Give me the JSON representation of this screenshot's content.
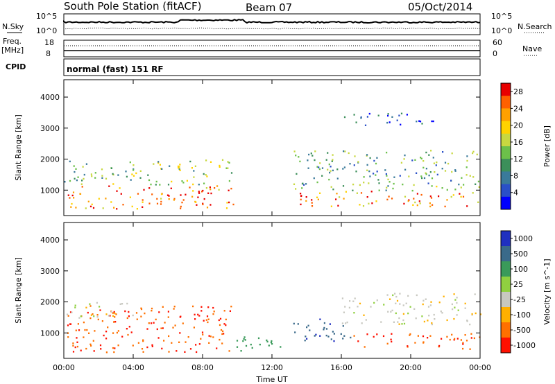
{
  "header": {
    "station": "South Pole Station (fitACF)",
    "beam": "Beam 07",
    "date": "05/Oct/2014"
  },
  "panels_top": {
    "nsky_label": "N.Sky",
    "nsky_ticks": [
      "10^5",
      "10^0"
    ],
    "nsearch_label": "N.Search",
    "nsearch_ticks": [
      "10^5",
      "10^0"
    ],
    "freq_label_1": "Freq.",
    "freq_label_2": "[MHz]",
    "freq_ticks": [
      "18",
      "8"
    ],
    "nave_label": "Nave",
    "nave_ticks": [
      "60",
      "0"
    ],
    "cpid_label": "CPID",
    "cpid_value": "normal (fast) 151 RF"
  },
  "chart_data": [
    {
      "type": "heatmap",
      "title": "",
      "xlabel": "Time UT",
      "ylabel": "Slant Range [km]",
      "x_ticks": [
        "00:00",
        "04:00",
        "08:00",
        "12:00",
        "16:00",
        "20:00",
        "00:00"
      ],
      "y_ticks": [
        "1000",
        "2000",
        "3000",
        "4000"
      ],
      "xlim_hours": [
        0,
        24
      ],
      "ylim_km": [
        180,
        4560
      ],
      "colorbar_label": "Power [dB]",
      "colorbar_ticks": [
        "28",
        "24",
        "20",
        "16",
        "12",
        "8",
        "4"
      ],
      "colorbar_range": [
        0,
        30
      ],
      "colorscale": [
        "#0000ff",
        "#2a50c8",
        "#3a7a9a",
        "#3c8f5a",
        "#6cc04a",
        "#c8d840",
        "#ffd200",
        "#ffa000",
        "#ff6000",
        "#e80000"
      ],
      "regions": [
        {
          "t": [
            0.0,
            9.8
          ],
          "r": [
            400,
            1200
          ],
          "value": 24
        },
        {
          "t": [
            0.0,
            9.8
          ],
          "r": [
            1200,
            2000
          ],
          "value": 14
        },
        {
          "t": [
            13.2,
            24.0
          ],
          "r": [
            500,
            1000
          ],
          "value": 23
        },
        {
          "t": [
            13.2,
            24.0
          ],
          "r": [
            1000,
            1500
          ],
          "value": 12
        },
        {
          "t": [
            13.2,
            24.0
          ],
          "r": [
            1500,
            2300
          ],
          "value": 11
        },
        {
          "t": [
            15.8,
            21.5
          ],
          "r": [
            3100,
            3500
          ],
          "value": 5
        }
      ]
    },
    {
      "type": "heatmap",
      "title": "",
      "xlabel": "Time UT",
      "ylabel": "Slant Range [km]",
      "x_ticks": [
        "00:00",
        "04:00",
        "08:00",
        "12:00",
        "16:00",
        "20:00",
        "00:00"
      ],
      "y_ticks": [
        "1000",
        "2000",
        "3000",
        "4000"
      ],
      "xlim_hours": [
        0,
        24
      ],
      "ylim_km": [
        180,
        4560
      ],
      "colorbar_label": "Velocity [m s^-1]",
      "colorbar_ticks": [
        "1000",
        "500",
        "100",
        "25",
        "-25",
        "-100",
        "-500",
        "-1000"
      ],
      "colorbar_colors": [
        "#2030c0",
        "#3a6a8a",
        "#3a9a5a",
        "#90d040",
        "#c8c8c0",
        "#ffb000",
        "#ff7000",
        "#ff1000"
      ],
      "regions": [
        {
          "t": [
            0.0,
            9.8
          ],
          "r": [
            400,
            1900
          ],
          "value": -300
        },
        {
          "t": [
            0.0,
            4.0
          ],
          "r": [
            1500,
            2000
          ],
          "value": 0
        },
        {
          "t": [
            9.8,
            13.2
          ],
          "r": [
            400,
            900
          ],
          "value": 150
        },
        {
          "t": [
            13.2,
            16.5
          ],
          "r": [
            700,
            1500
          ],
          "value": 600
        },
        {
          "t": [
            16.5,
            24.0
          ],
          "r": [
            500,
            1000
          ],
          "value": -300
        },
        {
          "t": [
            16.0,
            24.0
          ],
          "r": [
            1300,
            2300
          ],
          "value": 0
        }
      ]
    }
  ]
}
